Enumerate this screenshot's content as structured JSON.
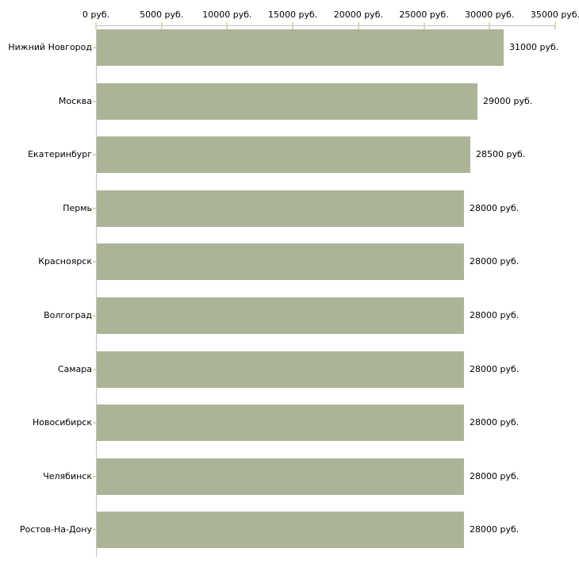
{
  "chart_data": {
    "type": "bar",
    "orientation": "horizontal",
    "title": "",
    "xlabel": "",
    "ylabel": "",
    "xlim": [
      0,
      35000
    ],
    "grid": false,
    "legend": "none",
    "categories": [
      "Нижний Новгород",
      "Москва",
      "Екатеринбург",
      "Пермь",
      "Красноярск",
      "Волгоград",
      "Самара",
      "Новосибирск",
      "Челябинск",
      "Ростов-На-Дону"
    ],
    "values": [
      31000,
      29000,
      28500,
      28000,
      28000,
      28000,
      28000,
      28000,
      28000,
      28000
    ],
    "value_labels": [
      "31000 руб.",
      "29000 руб.",
      "28500 руб.",
      "28000 руб.",
      "28000 руб.",
      "28000 руб.",
      "28000 руб.",
      "28000 руб.",
      "28000 руб.",
      "28000 руб."
    ],
    "x_tick_values": [
      0,
      5000,
      10000,
      15000,
      20000,
      25000,
      30000,
      35000
    ],
    "x_tick_labels": [
      "0 руб.",
      "5000 руб.",
      "10000 руб.",
      "15000 руб.",
      "20000 руб.",
      "25000 руб.",
      "30000 руб.",
      "35000 руб."
    ],
    "colors": {
      "bar": "#acb498",
      "axis": "#c3c3c3",
      "tick": "#d9dcae",
      "text": "#000000",
      "background": "#ffffff"
    }
  }
}
